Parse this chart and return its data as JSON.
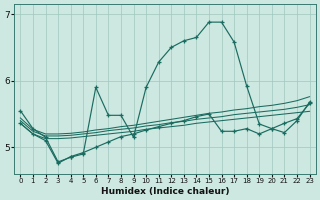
{
  "xlabel": "Humidex (Indice chaleur)",
  "bg_color": "#cce8e0",
  "grid_color": "#a0c8c0",
  "line_color": "#1a6b60",
  "xlim": [
    -0.5,
    23.5
  ],
  "ylim": [
    4.6,
    7.15
  ],
  "yticks": [
    5,
    6,
    7
  ],
  "xtick_labels": [
    "0",
    "1",
    "2",
    "3",
    "4",
    "5",
    "6",
    "7",
    "8",
    "9",
    "10",
    "11",
    "12",
    "13",
    "14",
    "15",
    "16",
    "17",
    "18",
    "19",
    "20",
    "21",
    "22",
    "23"
  ],
  "main_line_x": [
    0,
    1,
    2,
    3,
    4,
    5,
    6,
    7,
    8,
    9,
    10,
    11,
    12,
    13,
    14,
    15,
    16,
    17,
    18,
    19,
    20,
    21,
    22,
    23
  ],
  "main_line_y": [
    5.55,
    5.28,
    5.15,
    4.78,
    4.85,
    4.9,
    5.9,
    5.48,
    5.48,
    5.15,
    5.9,
    6.28,
    6.5,
    6.6,
    6.65,
    6.88,
    6.88,
    6.58,
    5.92,
    5.35,
    5.28,
    5.22,
    5.4,
    5.68
  ],
  "line2_x": [
    0,
    1,
    2,
    3,
    4,
    5,
    6,
    7,
    8,
    9,
    10,
    11,
    12,
    13,
    14,
    15,
    16,
    17,
    18,
    19,
    20,
    21,
    22,
    23
  ],
  "line2_y": [
    5.36,
    5.2,
    5.1,
    4.76,
    4.86,
    4.92,
    5.0,
    5.08,
    5.16,
    5.2,
    5.26,
    5.31,
    5.36,
    5.4,
    5.46,
    5.5,
    5.24,
    5.24,
    5.28,
    5.2,
    5.28,
    5.36,
    5.43,
    5.66
  ],
  "flat1_x": [
    0,
    1,
    2,
    3,
    4,
    5,
    6,
    7,
    8,
    9,
    10,
    11,
    12,
    13,
    14,
    15,
    16,
    17,
    18,
    19,
    20,
    21,
    22,
    23
  ],
  "flat1_y": [
    5.36,
    5.2,
    5.13,
    5.13,
    5.14,
    5.16,
    5.18,
    5.2,
    5.22,
    5.24,
    5.27,
    5.29,
    5.31,
    5.33,
    5.36,
    5.38,
    5.4,
    5.42,
    5.44,
    5.46,
    5.48,
    5.5,
    5.52,
    5.54
  ],
  "flat2_x": [
    0,
    1,
    2,
    3,
    4,
    5,
    6,
    7,
    8,
    9,
    10,
    11,
    12,
    13,
    14,
    15,
    16,
    17,
    18,
    19,
    20,
    21,
    22,
    23
  ],
  "flat2_y": [
    5.4,
    5.24,
    5.17,
    5.17,
    5.18,
    5.2,
    5.22,
    5.25,
    5.27,
    5.29,
    5.32,
    5.34,
    5.37,
    5.39,
    5.42,
    5.44,
    5.46,
    5.49,
    5.51,
    5.53,
    5.55,
    5.57,
    5.6,
    5.64
  ],
  "flat3_x": [
    0,
    1,
    2,
    3,
    4,
    5,
    6,
    7,
    8,
    9,
    10,
    11,
    12,
    13,
    14,
    15,
    16,
    17,
    18,
    19,
    20,
    21,
    22,
    23
  ],
  "flat3_y": [
    5.44,
    5.27,
    5.2,
    5.2,
    5.21,
    5.23,
    5.26,
    5.28,
    5.31,
    5.33,
    5.36,
    5.39,
    5.42,
    5.45,
    5.48,
    5.51,
    5.53,
    5.56,
    5.58,
    5.61,
    5.63,
    5.66,
    5.7,
    5.76
  ]
}
